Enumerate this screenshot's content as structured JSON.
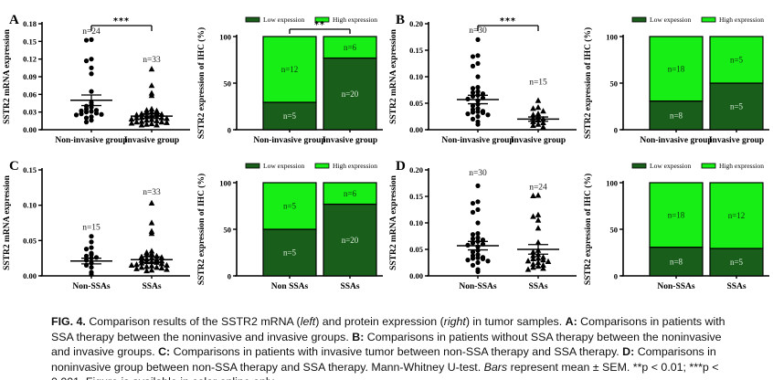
{
  "colors": {
    "low_expression": "#1a5e1c",
    "high_expression": "#16ee16",
    "axis": "#000000"
  },
  "legend": {
    "low": "Low expession",
    "high": "High expression"
  },
  "chart_data": {
    "type": "figure",
    "panels": [
      {
        "letter": "A",
        "scatter": {
          "type": "scatter",
          "ylabel": "SSTR2 mRNA expression",
          "ymax": 0.18,
          "yticks": [
            "0.00",
            "0.03",
            "0.06",
            "0.09",
            "0.12",
            "0.15",
            "0.18"
          ],
          "sig": "***",
          "groups": [
            {
              "label": "Non-invasive group",
              "n_label": "n=24",
              "n_y": 0.163,
              "marker": "circle",
              "mean": 0.05,
              "sem": 0.009,
              "points": [
                0.153,
                0.152,
                0.12,
                0.117,
                0.105,
                0.095,
                0.065,
                0.046,
                0.042,
                0.04,
                0.038,
                0.035,
                0.033,
                0.032,
                0.031,
                0.03,
                0.028,
                0.027,
                0.026,
                0.025,
                0.022,
                0.02,
                0.016,
                0.013
              ]
            },
            {
              "label": "Invasive group",
              "n_label": "n=33",
              "n_y": 0.115,
              "marker": "triangle",
              "mean": 0.023,
              "sem": 0.004,
              "points": [
                0.103,
                0.075,
                0.062,
                0.058,
                0.035,
                0.033,
                0.032,
                0.03,
                0.029,
                0.028,
                0.027,
                0.026,
                0.025,
                0.024,
                0.023,
                0.022,
                0.021,
                0.02,
                0.02,
                0.019,
                0.018,
                0.017,
                0.016,
                0.015,
                0.014,
                0.013,
                0.013,
                0.012,
                0.011,
                0.01,
                0.009,
                0.008,
                0.008
              ]
            }
          ]
        },
        "bar": {
          "type": "stacked-bar",
          "ylabel": "SSTR2 expression of IHC (%)",
          "yticks": [
            "0",
            "50",
            "100"
          ],
          "sig": "**",
          "groups": [
            {
              "label": "Non-invasive group",
              "low": 5,
              "high": 12
            },
            {
              "label": "Invasive group",
              "low": 20,
              "high": 6
            }
          ]
        }
      },
      {
        "letter": "B",
        "scatter": {
          "type": "scatter",
          "ylabel": "SSTR2 mRNA expression",
          "ymax": 0.2,
          "yticks": [
            "0.00",
            "0.05",
            "0.10",
            "0.15",
            "0.20"
          ],
          "sig": "***",
          "groups": [
            {
              "label": "Non-invasive group",
              "n_label": "n=30",
              "n_y": 0.183,
              "marker": "circle",
              "mean": 0.057,
              "sem": 0.008,
              "points": [
                0.17,
                0.14,
                0.138,
                0.125,
                0.12,
                0.1,
                0.08,
                0.078,
                0.072,
                0.07,
                0.068,
                0.065,
                0.063,
                0.06,
                0.058,
                0.055,
                0.048,
                0.045,
                0.04,
                0.038,
                0.035,
                0.034,
                0.033,
                0.032,
                0.03,
                0.028,
                0.025,
                0.02,
                0.015,
                0.01
              ]
            },
            {
              "label": "Invasive group",
              "n_label": "n=15",
              "n_y": 0.085,
              "marker": "triangle",
              "mean": 0.02,
              "sem": 0.004,
              "points": [
                0.055,
                0.042,
                0.04,
                0.035,
                0.03,
                0.028,
                0.025,
                0.022,
                0.02,
                0.018,
                0.015,
                0.013,
                0.01,
                0.008,
                0.005
              ]
            }
          ]
        },
        "bar": {
          "type": "stacked-bar",
          "ylabel": "SSTR2 expression of IHC (%)",
          "yticks": [
            "0",
            "50",
            "100"
          ],
          "sig": null,
          "groups": [
            {
              "label": "Non-invasive group",
              "low": 8,
              "high": 18
            },
            {
              "label": "Invasive group",
              "low": 5,
              "high": 5
            }
          ]
        }
      },
      {
        "letter": "C",
        "scatter": {
          "type": "scatter",
          "ylabel": "SSTR2 mRNA expression",
          "ymax": 0.15,
          "yticks": [
            "0.00",
            "0.05",
            "0.10",
            "0.15"
          ],
          "sig": null,
          "groups": [
            {
              "label": "Non-SSAs",
              "n_label": "n=15",
              "n_y": 0.065,
              "marker": "circle",
              "mean": 0.021,
              "sem": 0.004,
              "points": [
                0.056,
                0.048,
                0.04,
                0.038,
                0.032,
                0.03,
                0.028,
                0.026,
                0.025,
                0.022,
                0.018,
                0.015,
                0.012,
                0.005,
                0.002
              ]
            },
            {
              "label": "SSAs",
              "n_label": "n=33",
              "n_y": 0.115,
              "marker": "triangle",
              "mean": 0.023,
              "sem": 0.004,
              "points": [
                0.103,
                0.075,
                0.063,
                0.06,
                0.035,
                0.033,
                0.031,
                0.03,
                0.028,
                0.027,
                0.026,
                0.025,
                0.024,
                0.023,
                0.022,
                0.021,
                0.02,
                0.02,
                0.019,
                0.018,
                0.017,
                0.016,
                0.015,
                0.015,
                0.014,
                0.013,
                0.012,
                0.012,
                0.011,
                0.01,
                0.009,
                0.008,
                0.007
              ]
            }
          ]
        },
        "bar": {
          "type": "stacked-bar",
          "ylabel": "SSTR2 expression of IHC (%)",
          "yticks": [
            "0",
            "50",
            "100"
          ],
          "sig": null,
          "groups": [
            {
              "label": "Non SSAs",
              "low": 5,
              "high": 5
            },
            {
              "label": "SSAs",
              "low": 20,
              "high": 6
            }
          ]
        }
      },
      {
        "letter": "D",
        "scatter": {
          "type": "scatter",
          "ylabel": "SSTR2 mRNA expression",
          "ymax": 0.2,
          "yticks": [
            "0.00",
            "0.05",
            "0.10",
            "0.15",
            "0.20"
          ],
          "sig": null,
          "groups": [
            {
              "label": "Non-SSAs",
              "n_label": "n=30",
              "n_y": 0.19,
              "marker": "circle",
              "mean": 0.057,
              "sem": 0.008,
              "points": [
                0.17,
                0.14,
                0.137,
                0.125,
                0.12,
                0.1,
                0.08,
                0.078,
                0.072,
                0.07,
                0.068,
                0.065,
                0.062,
                0.06,
                0.058,
                0.055,
                0.048,
                0.045,
                0.04,
                0.038,
                0.035,
                0.034,
                0.033,
                0.032,
                0.03,
                0.028,
                0.025,
                0.02,
                0.012,
                0.008
              ]
            },
            {
              "label": "SSAs",
              "n_label": "n=24",
              "n_y": 0.163,
              "marker": "triangle",
              "mean": 0.05,
              "sem": 0.009,
              "points": [
                0.152,
                0.151,
                0.115,
                0.112,
                0.105,
                0.09,
                0.063,
                0.048,
                0.045,
                0.04,
                0.038,
                0.035,
                0.033,
                0.032,
                0.03,
                0.028,
                0.027,
                0.025,
                0.022,
                0.02,
                0.018,
                0.016,
                0.014,
                0.012
              ]
            }
          ]
        },
        "bar": {
          "type": "stacked-bar",
          "ylabel": "SSTR2 expression of IHC (%)",
          "yticks": [
            "0",
            "50",
            "100"
          ],
          "sig": null,
          "groups": [
            {
              "label": "Non-SSAs",
              "low": 8,
              "high": 18
            },
            {
              "label": "SSAs",
              "low": 5,
              "high": 12
            }
          ]
        }
      }
    ]
  },
  "caption": {
    "segments": [
      {
        "text": "FIG. 4.",
        "bold": true
      },
      {
        "text": " Comparison results of the SSTR2 mRNA ("
      },
      {
        "text": "left",
        "italic": true
      },
      {
        "text": ") and protein expression ("
      },
      {
        "text": "right",
        "italic": true
      },
      {
        "text": ") in tumor samples. "
      },
      {
        "text": "A:",
        "bold": true
      },
      {
        "text": " Comparisons in patients with SSA therapy between the noninvasive and invasive groups. "
      },
      {
        "text": "B:",
        "bold": true
      },
      {
        "text": " Comparisons in patients without SSA therapy between the noninvasive and invasive groups. "
      },
      {
        "text": "C:",
        "bold": true
      },
      {
        "text": " Comparisons in patients with invasive tumor between non-SSA therapy and SSA therapy. "
      },
      {
        "text": "D:",
        "bold": true
      },
      {
        "text": " Comparisons in noninvasive group between non-SSA therapy and SSA therapy. Mann-Whitney U-test. "
      },
      {
        "text": "Bars",
        "italic": true
      },
      {
        "text": " represent mean ± SEM. **p < 0.01; ***p < 0.001. Figure is available in color online only."
      }
    ]
  }
}
